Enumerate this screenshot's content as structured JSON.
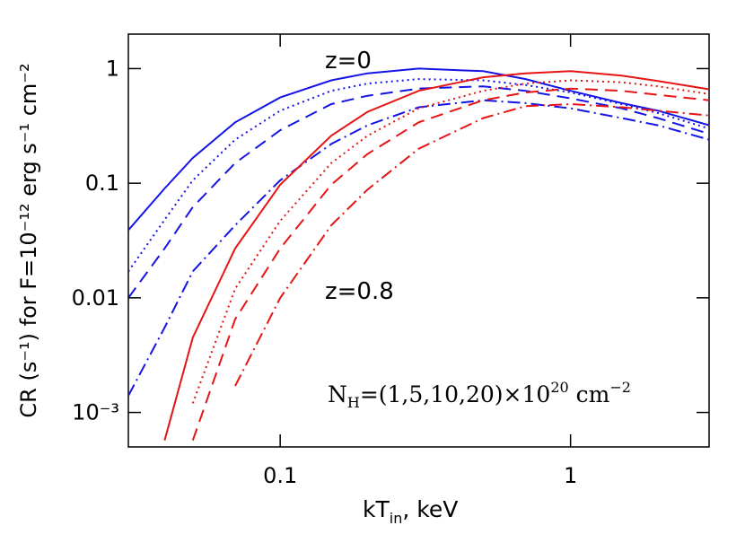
{
  "chart_data": {
    "type": "line",
    "xlabel": [
      "kT",
      "in",
      ",  keV"
    ],
    "ylabel": "CR (s⁻¹)  for  F=10⁻¹² erg s⁻¹ cm⁻²",
    "annotations": [
      {
        "text": "z=0",
        "color": "#1414e6"
      },
      {
        "text": "z=0.8",
        "color": "#e61414"
      }
    ],
    "nh_label": [
      "N",
      "H",
      "=(1,5,10,20)×10",
      "20",
      " cm",
      "−2"
    ],
    "xscale": "log",
    "yscale": "log",
    "xlim": [
      0.03,
      3
    ],
    "ylim": [
      0.0005,
      2
    ],
    "xticks": [
      0.1,
      1
    ],
    "yticks": [
      1,
      0.1,
      0.01,
      {
        "value": 0.001,
        "label": "10⁻³"
      }
    ],
    "x": [
      0.03,
      0.04,
      0.05,
      0.07,
      0.1,
      0.15,
      0.2,
      0.3,
      0.5,
      0.7,
      1,
      1.5,
      2,
      3
    ],
    "series": [
      {
        "color": "#1414e6",
        "style": "solid",
        "values": [
          0.039,
          0.09,
          0.166,
          0.34,
          0.56,
          0.79,
          0.91,
          1.0,
          0.95,
          0.81,
          0.64,
          0.5,
          0.43,
          0.32
        ]
      },
      {
        "color": "#1414e6",
        "style": "dotted",
        "values": [
          0.017,
          0.048,
          0.106,
          0.24,
          0.43,
          0.64,
          0.74,
          0.81,
          0.79,
          0.72,
          0.62,
          0.49,
          0.41,
          0.3
        ]
      },
      {
        "color": "#1414e6",
        "style": "dashed",
        "values": [
          0.01,
          0.027,
          0.062,
          0.15,
          0.29,
          0.49,
          0.58,
          0.67,
          0.7,
          0.64,
          0.55,
          0.45,
          0.37,
          0.27
        ]
      },
      {
        "color": "#1414e6",
        "style": "dashdot",
        "values": [
          0.0014,
          0.0055,
          0.017,
          0.043,
          0.106,
          0.22,
          0.32,
          0.46,
          0.53,
          0.5,
          0.45,
          0.37,
          0.32,
          0.24
        ]
      },
      {
        "color": "#e61414",
        "style": "solid",
        "values": [
          null,
          0.00057,
          0.0045,
          0.027,
          0.097,
          0.26,
          0.42,
          0.64,
          0.84,
          0.91,
          0.95,
          0.87,
          0.78,
          0.66
        ]
      },
      {
        "color": "#e61414",
        "style": "dotted",
        "values": [
          null,
          null,
          0.0012,
          0.012,
          0.047,
          0.15,
          0.26,
          0.45,
          0.64,
          0.74,
          0.79,
          0.76,
          0.7,
          0.6
        ]
      },
      {
        "color": "#e61414",
        "style": "dashed",
        "values": [
          null,
          null,
          0.00057,
          0.0065,
          0.027,
          0.097,
          0.18,
          0.34,
          0.53,
          0.62,
          0.67,
          0.64,
          0.59,
          0.53
        ]
      },
      {
        "color": "#e61414",
        "style": "dashdot",
        "values": [
          null,
          null,
          null,
          0.0017,
          0.01,
          0.043,
          0.088,
          0.2,
          0.37,
          0.47,
          0.49,
          0.46,
          0.43,
          0.39
        ]
      }
    ]
  }
}
